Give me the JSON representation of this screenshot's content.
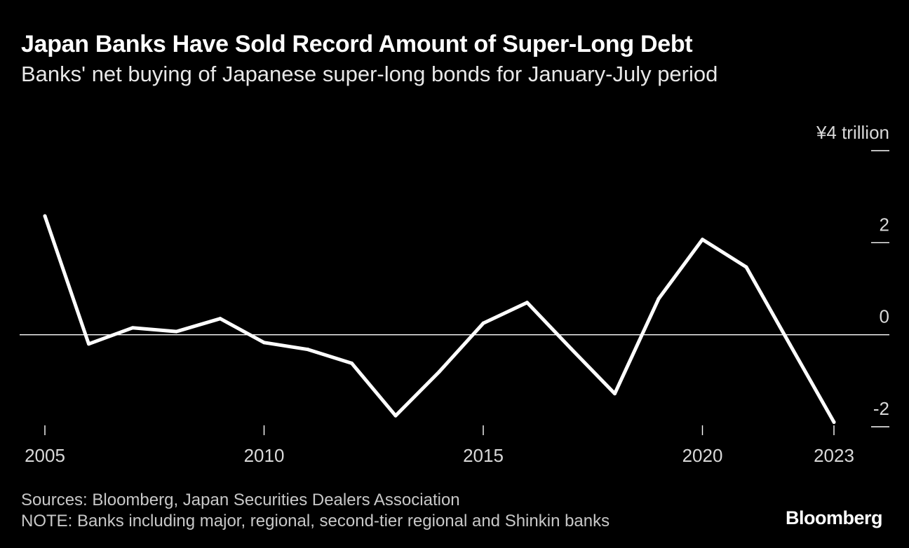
{
  "header": {
    "title": "Japan Banks Have Sold Record Amount of Super-Long Debt",
    "subtitle": "Banks' net buying of Japanese super-long bonds for January-July period"
  },
  "footer": {
    "source": "Sources: Bloomberg, Japan Securities Dealers Association",
    "note": "NOTE: Banks including major, regional, second-tier regional and Shinkin banks",
    "brand": "Bloomberg"
  },
  "colors": {
    "background": "#000000",
    "line": "#ffffff",
    "text": "#ffffff",
    "muted": "#c8c8c8"
  },
  "chart_data": {
    "type": "line",
    "title": "Japan Banks Have Sold Record Amount of Super-Long Debt",
    "subtitle": "Banks' net buying of Japanese super-long bonds for January-July period",
    "xlabel": "",
    "ylabel": "¥ trillion",
    "ylim": [
      -2,
      4
    ],
    "xlim": [
      2005,
      2023
    ],
    "y_ticks": [
      {
        "value": 4,
        "label": "¥4 trillion"
      },
      {
        "value": 2,
        "label": "2"
      },
      {
        "value": 0,
        "label": "0"
      },
      {
        "value": -2,
        "label": "-2"
      }
    ],
    "x_ticks": [
      {
        "value": 2005,
        "label": "2005"
      },
      {
        "value": 2010,
        "label": "2010"
      },
      {
        "value": 2015,
        "label": "2015"
      },
      {
        "value": 2020,
        "label": "2020"
      },
      {
        "value": 2023,
        "label": "2023"
      }
    ],
    "zero_line": true,
    "series": [
      {
        "name": "Banks' net buying",
        "x": [
          2005,
          2006,
          2007,
          2008,
          2009,
          2010,
          2011,
          2012,
          2013,
          2014,
          2015,
          2016,
          2017,
          2018,
          2019,
          2020,
          2021,
          2022,
          2023
        ],
        "values": [
          2.58,
          -0.2,
          0.15,
          0.07,
          0.35,
          -0.17,
          -0.32,
          -0.62,
          -1.76,
          -0.8,
          0.25,
          0.7,
          -0.3,
          -1.28,
          0.78,
          2.07,
          1.47,
          -0.22,
          -1.9
        ]
      }
    ]
  }
}
